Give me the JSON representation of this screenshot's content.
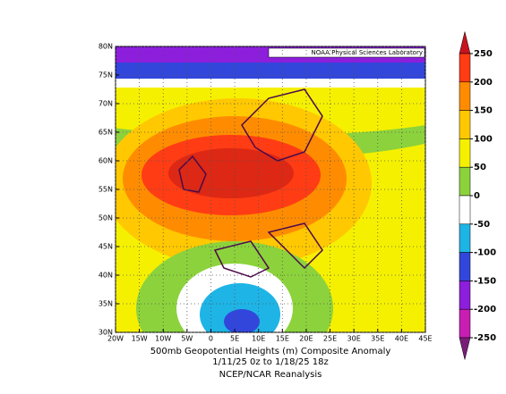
{
  "map": {
    "credit": "NOAA Physical Sciences Laboratory",
    "caption": [
      "500mb Geopotential Heights (m)    Composite Anomaly",
      "1/11/25 0z  to 1/18/25 18z",
      "NCEP/NCAR Reanalysis"
    ],
    "xlim": [
      -20,
      45
    ],
    "ylim": [
      30,
      80
    ],
    "xticks": [
      {
        "value": -20,
        "label": "20W"
      },
      {
        "value": -15,
        "label": "15W"
      },
      {
        "value": -10,
        "label": "10W"
      },
      {
        "value": -5,
        "label": "5W"
      },
      0,
      {
        "value": 5,
        "label": "5E"
      },
      {
        "value": 10,
        "label": "10E"
      },
      {
        "value": 15,
        "label": "15E"
      },
      {
        "value": 20,
        "label": "20E"
      },
      {
        "value": 25,
        "label": "25E"
      },
      {
        "value": 30,
        "label": "30E"
      },
      {
        "value": 35,
        "label": "35E"
      },
      {
        "value": 40,
        "label": "40E"
      },
      {
        "value": 45,
        "label": "45E"
      }
    ],
    "yticks": [
      {
        "value": 30,
        "label": "30N"
      },
      {
        "value": 35,
        "label": "35N"
      },
      {
        "value": 40,
        "label": "40N"
      },
      {
        "value": 45,
        "label": "45N"
      },
      {
        "value": 50,
        "label": "50N"
      },
      {
        "value": 55,
        "label": "55N"
      },
      {
        "value": 60,
        "label": "60N"
      },
      {
        "value": 65,
        "label": "65N"
      },
      {
        "value": 70,
        "label": "70N"
      },
      {
        "value": 75,
        "label": "75N"
      },
      {
        "value": 80,
        "label": "80N"
      }
    ],
    "colorbar": {
      "levels": [
        250,
        200,
        150,
        100,
        50,
        0,
        -50,
        -100,
        -150,
        -200,
        -250
      ],
      "colors": [
        "#c8141e",
        "#ff3c14",
        "#ff8c00",
        "#ffc800",
        "#f5f000",
        "#8cd23c",
        "#ffffff",
        "#1eb4e6",
        "#3246dc",
        "#8c1edc",
        "#c81eb4",
        "#781e78"
      ]
    }
  }
}
